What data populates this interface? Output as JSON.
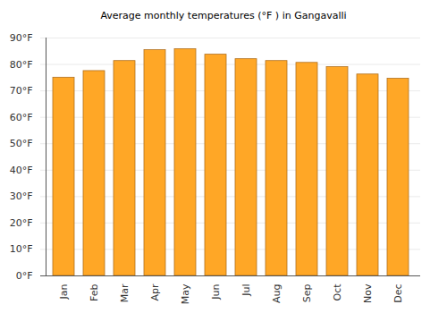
{
  "chart_data": {
    "type": "bar",
    "title": "Average monthly temperatures (°F ) in Gangavalli",
    "categories": [
      "Jan",
      "Feb",
      "Mar",
      "Apr",
      "May",
      "Jun",
      "Jul",
      "Aug",
      "Sep",
      "Oct",
      "Nov",
      "Dec"
    ],
    "values": [
      75,
      77.5,
      81.3,
      85.4,
      85.8,
      83.7,
      82,
      81.3,
      80.6,
      79,
      76.2,
      74.6
    ],
    "color": "#ffa726",
    "ylim": [
      0,
      90
    ],
    "yticks": [
      {
        "value": 0,
        "label": "0°F"
      },
      {
        "value": 10,
        "label": "10°F"
      },
      {
        "value": 20,
        "label": "20°F"
      },
      {
        "value": 30,
        "label": "30°F"
      },
      {
        "value": 40,
        "label": "40°F"
      },
      {
        "value": 50,
        "label": "50°F"
      },
      {
        "value": 60,
        "label": "60°F"
      },
      {
        "value": 70,
        "label": "70°F"
      },
      {
        "value": 80,
        "label": "80°F"
      },
      {
        "value": 90,
        "label": "90°F"
      }
    ],
    "grid": true
  }
}
